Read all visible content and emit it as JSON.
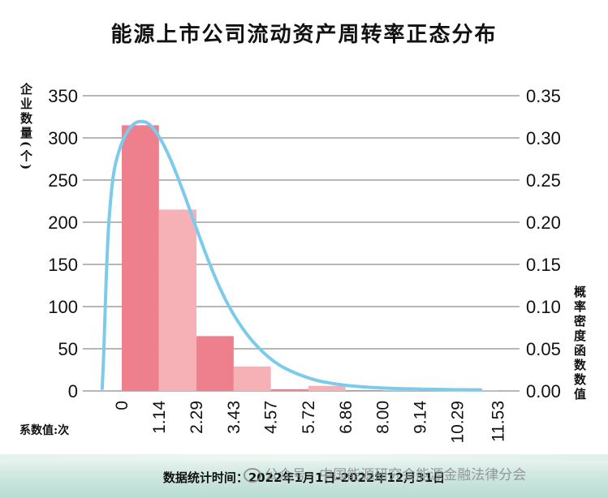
{
  "chart_data": {
    "type": "bar",
    "title": "能源上市公司流动资产周转率正态分布",
    "ylabel_left": "企业数量(个)",
    "ylabel_right": "概率密度函数数值",
    "xlabel": "系数值:次",
    "footer": "数据统计时间：2022年1月1日-2022年12月31日",
    "watermark": "公众号 · 中国能源研究会能源金融法律分会",
    "x_ticks": [
      "0",
      "1.14",
      "2.29",
      "3.43",
      "4.57",
      "5.72",
      "6.86",
      "8.00",
      "9.14",
      "10.29",
      "11.53"
    ],
    "y_left_ticks": [
      "0",
      "50",
      "100",
      "150",
      "200",
      "250",
      "300",
      "350"
    ],
    "y_right_ticks": [
      "0.00",
      "0.05",
      "0.10",
      "0.15",
      "0.20",
      "0.25",
      "0.30",
      "0.35"
    ],
    "ylim_left": [
      0,
      350
    ],
    "ylim_right": [
      0,
      0.35
    ],
    "bars": [
      {
        "x0": 0,
        "x1": 1.14,
        "value": 315
      },
      {
        "x0": 1.14,
        "x1": 2.29,
        "value": 215
      },
      {
        "x0": 2.29,
        "x1": 3.43,
        "value": 65
      },
      {
        "x0": 3.43,
        "x1": 4.57,
        "value": 29
      },
      {
        "x0": 4.57,
        "x1": 5.72,
        "value": 2
      },
      {
        "x0": 5.72,
        "x1": 6.86,
        "value": 6
      },
      {
        "x0": 6.86,
        "x1": 8.0,
        "value": 1
      },
      {
        "x0": 8.0,
        "x1": 9.14,
        "value": 1
      },
      {
        "x0": 9.14,
        "x1": 10.29,
        "value": 0
      },
      {
        "x0": 10.29,
        "x1": 11.53,
        "value": 1
      }
    ],
    "curve": {
      "x": [
        -0.6,
        -0.55,
        -0.5,
        -0.45,
        -0.4,
        -0.3,
        -0.2,
        0,
        0.2,
        0.4,
        0.6,
        0.8,
        1.0,
        1.2,
        1.4,
        1.6,
        1.8,
        2.0,
        2.2,
        2.5,
        2.8,
        3.1,
        3.4,
        3.7,
        4.0,
        4.4,
        4.8,
        5.2,
        5.6,
        6.0,
        6.5,
        7.0,
        7.5,
        8.0,
        8.5,
        9.0,
        9.5,
        10.0,
        10.5,
        11.0
      ],
      "y": [
        0.003,
        0.045,
        0.11,
        0.16,
        0.2,
        0.245,
        0.27,
        0.295,
        0.31,
        0.318,
        0.32,
        0.318,
        0.31,
        0.298,
        0.283,
        0.265,
        0.245,
        0.224,
        0.202,
        0.17,
        0.14,
        0.114,
        0.092,
        0.074,
        0.059,
        0.043,
        0.031,
        0.023,
        0.017,
        0.012,
        0.0085,
        0.006,
        0.0045,
        0.0035,
        0.0028,
        0.0023,
        0.0019,
        0.0016,
        0.0014,
        0.0012
      ]
    },
    "colors": {
      "bar_dark": "#ee7f8c",
      "bar_light": "#f6b1b7",
      "curve": "#7ccbea",
      "grid": "#8c8c8c"
    }
  }
}
